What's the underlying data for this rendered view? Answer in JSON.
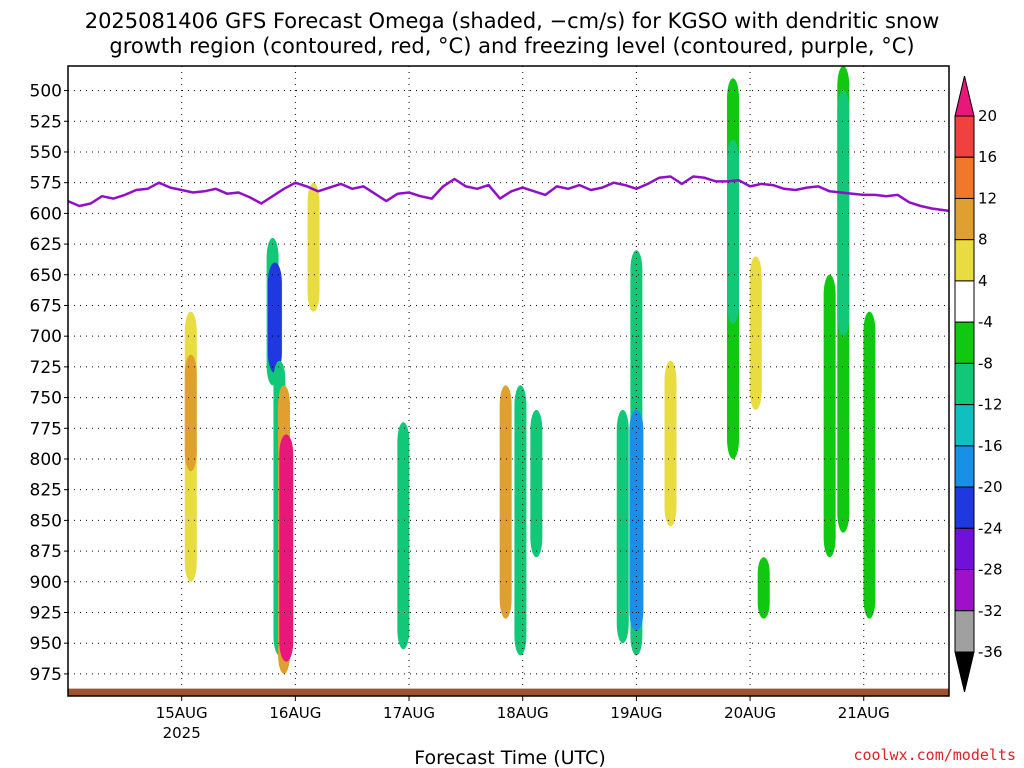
{
  "title_line1": "2025081406 GFS Forecast Omega (shaded, −cm/s) for KGSO with dendritic snow",
  "title_line2": "growth region (contoured, red, °C) and freezing level (contoured, purple, °C)",
  "credit": "coolwx.com/modelts",
  "chart_data": {
    "type": "heatmap",
    "title": "2025081406 GFS Forecast Omega (shaded, −cm/s) for KGSO with dendritic snow growth region (contoured, red, °C) and freezing level (contoured, purple, °C)",
    "xlabel": "Forecast Time (UTC)",
    "ylabel": "",
    "x_ticks": [
      {
        "label": "15AUG",
        "sub": "2025",
        "day": 1
      },
      {
        "label": "16AUG",
        "sub": "",
        "day": 2
      },
      {
        "label": "17AUG",
        "sub": "",
        "day": 3
      },
      {
        "label": "18AUG",
        "sub": "",
        "day": 4
      },
      {
        "label": "19AUG",
        "sub": "",
        "day": 5
      },
      {
        "label": "20AUG",
        "sub": "",
        "day": 6
      },
      {
        "label": "21AUG",
        "sub": "",
        "day": 7
      }
    ],
    "xlim_days": [
      0.0,
      7.75
    ],
    "y_ticks": [
      500,
      525,
      550,
      575,
      600,
      625,
      650,
      675,
      700,
      725,
      750,
      775,
      800,
      825,
      850,
      875,
      900,
      925,
      950,
      975
    ],
    "y_unit": "hPa",
    "ylim": [
      480,
      993
    ],
    "grid": true,
    "colorbar": {
      "ticks": [
        20,
        16,
        12,
        8,
        4,
        -4,
        -8,
        -12,
        -16,
        -20,
        -24,
        -28,
        -32,
        -36
      ],
      "bins": [
        {
          "low": 20,
          "high": null,
          "color": "#e8187a"
        },
        {
          "low": 16,
          "high": 20,
          "color": "#f04040"
        },
        {
          "low": 12,
          "high": 16,
          "color": "#f07828"
        },
        {
          "low": 8,
          "high": 12,
          "color": "#e0a030"
        },
        {
          "low": 4,
          "high": 8,
          "color": "#e8dc40"
        },
        {
          "low": -4,
          "high": 4,
          "color": "#ffffff"
        },
        {
          "low": -8,
          "high": -4,
          "color": "#10c810"
        },
        {
          "low": -12,
          "high": -8,
          "color": "#10c878"
        },
        {
          "low": -16,
          "high": -12,
          "color": "#10c0c0"
        },
        {
          "low": -20,
          "high": -16,
          "color": "#1890e8"
        },
        {
          "low": -24,
          "high": -20,
          "color": "#2038e0"
        },
        {
          "low": -28,
          "high": -24,
          "color": "#7010d8"
        },
        {
          "low": -32,
          "high": -28,
          "color": "#a010c8"
        },
        {
          "low": -36,
          "high": -32,
          "color": "#a0a0a0"
        },
        {
          "low": null,
          "high": -36,
          "color": "#000000"
        }
      ]
    },
    "freezing_level": {
      "color": "#9010c8",
      "day": [
        0.0,
        0.1,
        0.2,
        0.3,
        0.4,
        0.5,
        0.6,
        0.7,
        0.8,
        0.9,
        1.0,
        1.1,
        1.2,
        1.3,
        1.4,
        1.5,
        1.6,
        1.7,
        1.8,
        1.9,
        2.0,
        2.1,
        2.2,
        2.3,
        2.4,
        2.5,
        2.6,
        2.7,
        2.8,
        2.9,
        3.0,
        3.1,
        3.2,
        3.3,
        3.4,
        3.5,
        3.6,
        3.7,
        3.8,
        3.9,
        4.0,
        4.1,
        4.2,
        4.3,
        4.4,
        4.5,
        4.6,
        4.7,
        4.8,
        4.9,
        5.0,
        5.1,
        5.2,
        5.3,
        5.4,
        5.5,
        5.6,
        5.7,
        5.8,
        5.9,
        6.0,
        6.1,
        6.2,
        6.3,
        6.4,
        6.5,
        6.6,
        6.7,
        6.8,
        6.9,
        7.0,
        7.1,
        7.2,
        7.3,
        7.4,
        7.5,
        7.6,
        7.75
      ],
      "hpa": [
        590,
        594,
        592,
        586,
        588,
        585,
        581,
        580,
        575,
        579,
        581,
        583,
        582,
        580,
        584,
        583,
        587,
        592,
        586,
        580,
        575,
        578,
        582,
        579,
        576,
        580,
        578,
        584,
        590,
        584,
        583,
        586,
        588,
        578,
        572,
        578,
        580,
        577,
        588,
        582,
        579,
        582,
        585,
        578,
        580,
        577,
        581,
        579,
        575,
        577,
        580,
        576,
        571,
        570,
        576,
        570,
        571,
        574,
        574,
        573,
        578,
        576,
        577,
        580,
        581,
        579,
        578,
        582,
        583,
        584,
        585,
        585,
        586,
        585,
        591,
        594,
        596,
        598
      ]
    },
    "surface": {
      "color": "#a0522d",
      "pressure_hpa": 987
    },
    "shaded_regions": [
      {
        "day": 1.08,
        "p_top": 680,
        "p_bottom": 900,
        "value": 6
      },
      {
        "day": 1.08,
        "p_top": 715,
        "p_bottom": 810,
        "value": 10
      },
      {
        "day": 1.8,
        "p_top": 620,
        "p_bottom": 740,
        "value": -10
      },
      {
        "day": 1.82,
        "p_top": 640,
        "p_bottom": 730,
        "value": -22
      },
      {
        "day": 1.86,
        "p_top": 720,
        "p_bottom": 960,
        "value": -10
      },
      {
        "day": 1.9,
        "p_top": 740,
        "p_bottom": 975,
        "value": 10
      },
      {
        "day": 1.92,
        "p_top": 780,
        "p_bottom": 965,
        "value": 20
      },
      {
        "day": 2.16,
        "p_top": 575,
        "p_bottom": 680,
        "value": 6
      },
      {
        "day": 2.95,
        "p_top": 770,
        "p_bottom": 955,
        "value": -10
      },
      {
        "day": 3.85,
        "p_top": 740,
        "p_bottom": 930,
        "value": 8
      },
      {
        "day": 3.98,
        "p_top": 740,
        "p_bottom": 960,
        "value": -12
      },
      {
        "day": 4.12,
        "p_top": 760,
        "p_bottom": 880,
        "value": -10
      },
      {
        "day": 4.88,
        "p_top": 760,
        "p_bottom": 950,
        "value": -10
      },
      {
        "day": 5.0,
        "p_top": 630,
        "p_bottom": 960,
        "value": -12
      },
      {
        "day": 5.0,
        "p_top": 760,
        "p_bottom": 940,
        "value": -18
      },
      {
        "day": 5.3,
        "p_top": 720,
        "p_bottom": 855,
        "value": 6
      },
      {
        "day": 5.85,
        "p_top": 490,
        "p_bottom": 800,
        "value": -8
      },
      {
        "day": 5.85,
        "p_top": 540,
        "p_bottom": 690,
        "value": -12
      },
      {
        "day": 6.05,
        "p_top": 635,
        "p_bottom": 760,
        "value": 6
      },
      {
        "day": 6.12,
        "p_top": 880,
        "p_bottom": 930,
        "value": -6
      },
      {
        "day": 6.7,
        "p_top": 650,
        "p_bottom": 880,
        "value": -6
      },
      {
        "day": 6.82,
        "p_top": 480,
        "p_bottom": 860,
        "value": -8
      },
      {
        "day": 6.82,
        "p_top": 500,
        "p_bottom": 700,
        "value": -12
      },
      {
        "day": 7.05,
        "p_top": 680,
        "p_bottom": 930,
        "value": -6
      }
    ]
  }
}
